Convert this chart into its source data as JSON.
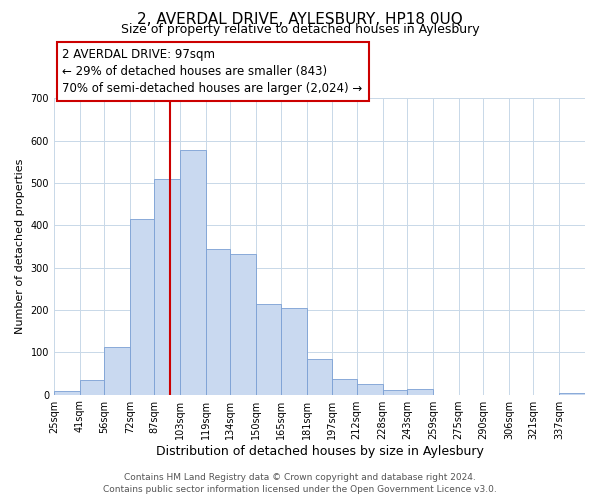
{
  "title": "2, AVERDAL DRIVE, AYLESBURY, HP18 0UQ",
  "subtitle": "Size of property relative to detached houses in Aylesbury",
  "xlabel": "Distribution of detached houses by size in Aylesbury",
  "ylabel": "Number of detached properties",
  "bin_labels": [
    "25sqm",
    "41sqm",
    "56sqm",
    "72sqm",
    "87sqm",
    "103sqm",
    "119sqm",
    "134sqm",
    "150sqm",
    "165sqm",
    "181sqm",
    "197sqm",
    "212sqm",
    "228sqm",
    "243sqm",
    "259sqm",
    "275sqm",
    "290sqm",
    "306sqm",
    "321sqm",
    "337sqm"
  ],
  "bin_edges": [
    25,
    41,
    56,
    72,
    87,
    103,
    119,
    134,
    150,
    165,
    181,
    197,
    212,
    228,
    243,
    259,
    275,
    290,
    306,
    321,
    337,
    353
  ],
  "bar_heights": [
    8,
    35,
    112,
    415,
    510,
    578,
    345,
    332,
    215,
    204,
    83,
    37,
    26,
    10,
    13,
    0,
    0,
    0,
    0,
    0,
    3
  ],
  "bar_color": "#c9d9f0",
  "bar_edgecolor": "#7a9fd4",
  "vline_x": 97,
  "vline_color": "#cc0000",
  "annotation_line1": "2 AVERDAL DRIVE: 97sqm",
  "annotation_line2": "← 29% of detached houses are smaller (843)",
  "annotation_line3": "70% of semi-detached houses are larger (2,024) →",
  "annotation_box_edgecolor": "#cc0000",
  "annotation_box_facecolor": "#ffffff",
  "ylim": [
    0,
    700
  ],
  "yticks": [
    0,
    100,
    200,
    300,
    400,
    500,
    600,
    700
  ],
  "footer_line1": "Contains HM Land Registry data © Crown copyright and database right 2024.",
  "footer_line2": "Contains public sector information licensed under the Open Government Licence v3.0.",
  "background_color": "#ffffff",
  "grid_color": "#c8d8e8",
  "title_fontsize": 11,
  "subtitle_fontsize": 9,
  "xlabel_fontsize": 9,
  "ylabel_fontsize": 8,
  "tick_fontsize": 7,
  "footer_fontsize": 6.5,
  "annotation_fontsize": 8.5
}
